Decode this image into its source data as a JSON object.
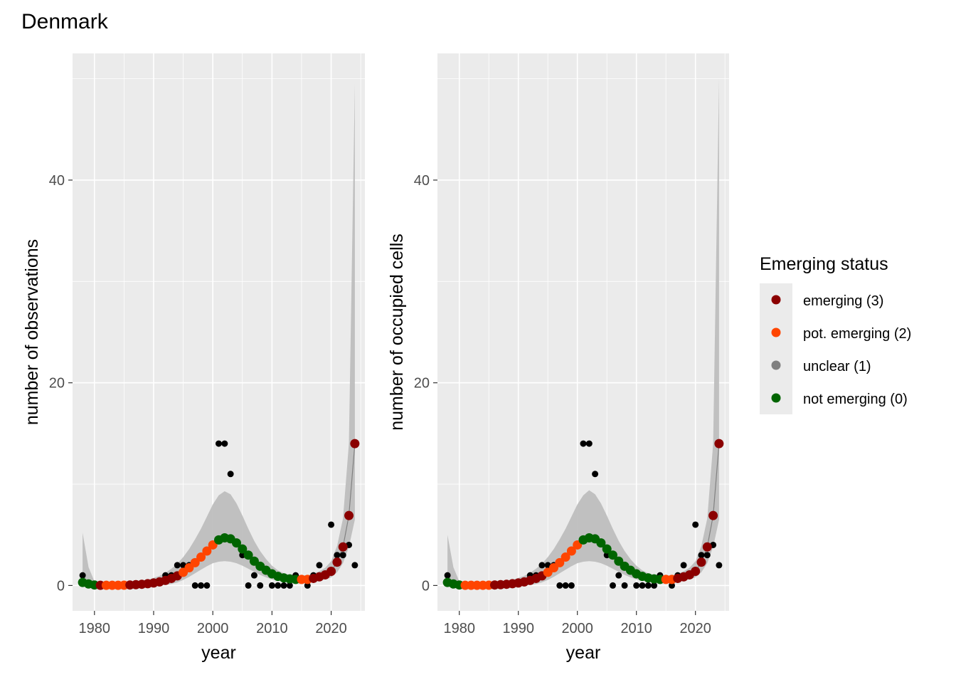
{
  "chart_data": {
    "type": "scatter",
    "title": "Denmark",
    "legend": {
      "title": "Emerging status",
      "placement": "right",
      "items": [
        {
          "label": "emerging (3)",
          "color": "#8B0000",
          "status": 3
        },
        {
          "label": "pot. emerging (2)",
          "color": "#FF4500",
          "status": 2
        },
        {
          "label": "unclear (1)",
          "color": "#808080",
          "status": 1
        },
        {
          "label": "not emerging (0)",
          "color": "#006400",
          "status": 0
        }
      ]
    },
    "panels": [
      {
        "xlabel": "year",
        "ylabel": "number of observations",
        "xlim": [
          1976.3,
          2025.7
        ],
        "ylim": [
          -2.5,
          52.5
        ],
        "xticks": [
          1980,
          1990,
          2000,
          2010,
          2020
        ],
        "yticks": [
          0,
          20,
          40
        ],
        "grid": true,
        "observed": {
          "x": [
            1978,
            1992,
            1993,
            1994,
            1995,
            1996,
            1997,
            1998,
            1999,
            2001,
            2002,
            2003,
            2005,
            2006,
            2007,
            2008,
            2010,
            2011,
            2012,
            2013,
            2014,
            2016,
            2017,
            2018,
            2019,
            2020,
            2021,
            2022,
            2023,
            2024
          ],
          "y": [
            1,
            1,
            1,
            2,
            2,
            2,
            0,
            0,
            0,
            14,
            14,
            11,
            3,
            0,
            1,
            0,
            0,
            0,
            0,
            0,
            1,
            0,
            1,
            2,
            1,
            6,
            3,
            3,
            4,
            2
          ]
        },
        "trend": {
          "x": [
            1978,
            1979,
            1980,
            1981,
            1982,
            1983,
            1984,
            1985,
            1986,
            1987,
            1988,
            1989,
            1990,
            1991,
            1992,
            1993,
            1994,
            1995,
            1996,
            1997,
            1998,
            1999,
            2000,
            2001,
            2002,
            2003,
            2004,
            2005,
            2006,
            2007,
            2008,
            2009,
            2010,
            2011,
            2012,
            2013,
            2014,
            2015,
            2016,
            2017,
            2018,
            2019,
            2020,
            2021,
            2022,
            2023,
            2024
          ],
          "y": [
            0.3,
            0.15,
            0.05,
            0.02,
            0.02,
            0.02,
            0.02,
            0.03,
            0.05,
            0.08,
            0.12,
            0.18,
            0.25,
            0.35,
            0.5,
            0.7,
            0.95,
            1.3,
            1.75,
            2.25,
            2.8,
            3.4,
            4.0,
            4.5,
            4.7,
            4.6,
            4.2,
            3.6,
            3.0,
            2.4,
            1.9,
            1.5,
            1.15,
            0.9,
            0.75,
            0.65,
            0.6,
            0.6,
            0.6,
            0.7,
            0.85,
            1.05,
            1.4,
            2.3,
            3.8,
            6.9,
            14.0
          ],
          "lower": [
            0,
            0,
            0,
            0,
            0,
            0,
            0,
            0,
            0,
            0,
            0,
            0,
            0,
            0,
            0.05,
            0.15,
            0.3,
            0.55,
            0.85,
            1.2,
            1.55,
            1.9,
            2.2,
            2.35,
            2.4,
            2.35,
            2.2,
            1.95,
            1.65,
            1.35,
            1.05,
            0.8,
            0.6,
            0.5,
            0.42,
            0.38,
            0.36,
            0.36,
            0.36,
            0.42,
            0.5,
            0.6,
            0.8,
            1.3,
            2.2,
            3.8,
            6.5
          ],
          "upper": [
            5.2,
            1.8,
            0.4,
            0.1,
            0.08,
            0.08,
            0.1,
            0.12,
            0.2,
            0.28,
            0.4,
            0.55,
            0.75,
            0.95,
            1.25,
            1.65,
            2.15,
            2.8,
            3.6,
            4.55,
            5.6,
            6.8,
            8.0,
            8.9,
            9.3,
            9.0,
            8.1,
            6.9,
            5.6,
            4.4,
            3.4,
            2.6,
            1.95,
            1.5,
            1.2,
            1.05,
            1.0,
            1.0,
            1.0,
            1.15,
            1.4,
            1.75,
            2.4,
            3.9,
            6.6,
            14.0,
            49.5
          ],
          "status": [
            0,
            0,
            0,
            3,
            2,
            2,
            2,
            2,
            3,
            3,
            3,
            3,
            3,
            3,
            3,
            3,
            3,
            2,
            2,
            2,
            2,
            2,
            2,
            0,
            0,
            0,
            0,
            0,
            0,
            0,
            0,
            0,
            0,
            0,
            0,
            0,
            0,
            2,
            2,
            3,
            3,
            3,
            3,
            3,
            3,
            3,
            3
          ]
        }
      },
      {
        "xlabel": "year",
        "ylabel": "number of occupied cells",
        "xlim": [
          1976.3,
          2025.7
        ],
        "ylim": [
          -2.5,
          52.5
        ],
        "xticks": [
          1980,
          1990,
          2000,
          2010,
          2020
        ],
        "yticks": [
          0,
          20,
          40
        ],
        "grid": true,
        "observed": {
          "x": [
            1978,
            1992,
            1993,
            1994,
            1995,
            1996,
            1997,
            1998,
            1999,
            2001,
            2002,
            2003,
            2005,
            2006,
            2007,
            2008,
            2010,
            2011,
            2012,
            2013,
            2014,
            2016,
            2017,
            2018,
            2019,
            2020,
            2021,
            2022,
            2023,
            2024
          ],
          "y": [
            1,
            1,
            1,
            2,
            2,
            2,
            0,
            0,
            0,
            14,
            14,
            11,
            3,
            0,
            1,
            0,
            0,
            0,
            0,
            0,
            1,
            0,
            1,
            2,
            1,
            6,
            3,
            3,
            4,
            2
          ]
        },
        "trend": {
          "x": [
            1978,
            1979,
            1980,
            1981,
            1982,
            1983,
            1984,
            1985,
            1986,
            1987,
            1988,
            1989,
            1990,
            1991,
            1992,
            1993,
            1994,
            1995,
            1996,
            1997,
            1998,
            1999,
            2000,
            2001,
            2002,
            2003,
            2004,
            2005,
            2006,
            2007,
            2008,
            2009,
            2010,
            2011,
            2012,
            2013,
            2014,
            2015,
            2016,
            2017,
            2018,
            2019,
            2020,
            2021,
            2022,
            2023,
            2024
          ],
          "y": [
            0.3,
            0.15,
            0.05,
            0.02,
            0.02,
            0.02,
            0.02,
            0.03,
            0.05,
            0.08,
            0.12,
            0.18,
            0.25,
            0.35,
            0.5,
            0.7,
            0.95,
            1.3,
            1.75,
            2.25,
            2.8,
            3.4,
            4.0,
            4.5,
            4.7,
            4.6,
            4.2,
            3.6,
            3.0,
            2.4,
            1.9,
            1.5,
            1.15,
            0.9,
            0.75,
            0.65,
            0.6,
            0.6,
            0.6,
            0.7,
            0.85,
            1.05,
            1.4,
            2.3,
            3.8,
            6.9,
            14.0
          ],
          "lower": [
            0,
            0,
            0,
            0,
            0,
            0,
            0,
            0,
            0,
            0,
            0,
            0,
            0,
            0,
            0.05,
            0.15,
            0.3,
            0.55,
            0.85,
            1.2,
            1.55,
            1.9,
            2.2,
            2.35,
            2.4,
            2.35,
            2.2,
            1.95,
            1.65,
            1.35,
            1.05,
            0.8,
            0.6,
            0.5,
            0.42,
            0.38,
            0.36,
            0.36,
            0.36,
            0.42,
            0.5,
            0.6,
            0.8,
            1.3,
            2.2,
            3.8,
            6.5
          ],
          "upper": [
            5.0,
            1.8,
            0.4,
            0.1,
            0.08,
            0.08,
            0.1,
            0.12,
            0.2,
            0.28,
            0.4,
            0.55,
            0.75,
            0.95,
            1.25,
            1.65,
            2.15,
            2.8,
            3.6,
            4.55,
            5.6,
            6.8,
            8.0,
            8.9,
            9.4,
            9.0,
            8.1,
            6.9,
            5.6,
            4.4,
            3.4,
            2.6,
            1.95,
            1.5,
            1.2,
            1.05,
            1.0,
            1.0,
            1.0,
            1.15,
            1.4,
            1.75,
            2.4,
            3.9,
            6.6,
            14.0,
            50.0
          ],
          "status": [
            0,
            0,
            0,
            2,
            2,
            2,
            2,
            2,
            3,
            3,
            3,
            3,
            3,
            3,
            3,
            3,
            3,
            2,
            2,
            2,
            2,
            2,
            2,
            0,
            0,
            0,
            0,
            0,
            0,
            0,
            0,
            0,
            0,
            0,
            0,
            0,
            0,
            2,
            2,
            3,
            3,
            3,
            3,
            3,
            3,
            3,
            3
          ]
        }
      }
    ]
  }
}
